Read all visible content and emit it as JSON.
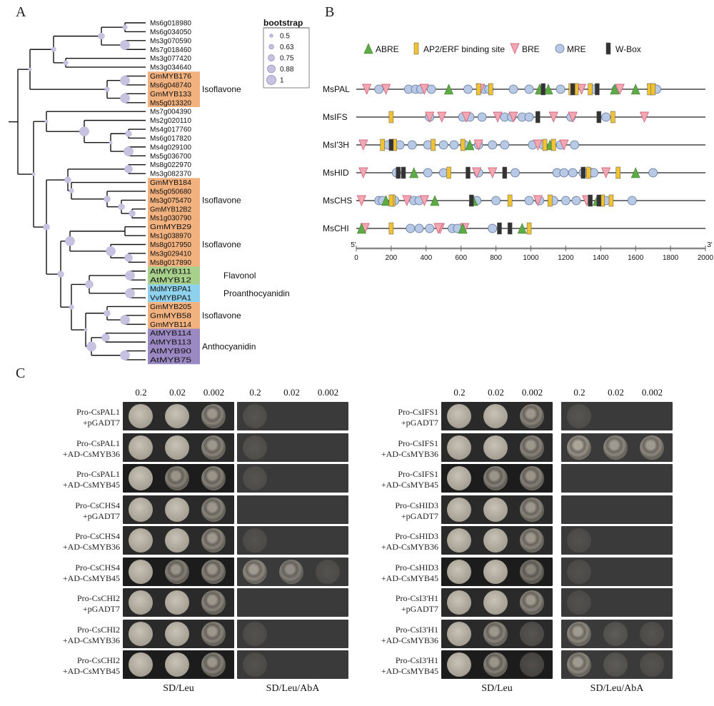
{
  "panels": {
    "a": "A",
    "b": "B",
    "c": "C"
  },
  "tree": {
    "bootstrap_legend": {
      "title": "bootstrap",
      "values": [
        "0.5",
        "0.63",
        "0.75",
        "0.88",
        "1"
      ]
    },
    "leaves": [
      "Ms6g018980",
      "Ms6g034050",
      "Ms3g070590",
      "Ms7g018460",
      "Ms3g077420",
      "Ms3g034640",
      "GmMYB176",
      "Ms6g048740",
      "GmMYB133",
      "Ms5g013320",
      "Ms7g004390",
      "Ms2g020110",
      "Ms4g017760",
      "Ms6g017820",
      "Ms4g029100",
      "Ms5g036700",
      "Ms8g022970",
      "Ms3g082370",
      "GmMYB184",
      "Ms5g050680",
      "Ms3g075470",
      "GmMYB12B2",
      "Ms1g030790",
      "GmMYB29",
      "Ms1g038970",
      "Ms8g017950",
      "Ms3g029410",
      "Ms8g017890",
      "AtMYB111",
      "AtMYB12",
      "MdMYBPA1",
      "VvMYBPA1",
      "GmMYB205",
      "GmMYB58",
      "GmMYB114",
      "AtMYB114",
      "AtMYB113",
      "AtMYB90",
      "AtMYB75"
    ],
    "groups": [
      {
        "label": "Isoflavone",
        "color": "#f2b27f"
      },
      {
        "label": "Isoflavone",
        "color": "#f2b27f"
      },
      {
        "label": "Isoflavone",
        "color": "#f2b27f"
      },
      {
        "label": "Flavonol",
        "color": "#a8d08d"
      },
      {
        "label": "Proanthocyanidin",
        "color": "#8ed1ec"
      },
      {
        "label": "Isoflavone",
        "color": "#f2b27f"
      },
      {
        "label": "Anthocyanidin",
        "color": "#9b89c4"
      }
    ]
  },
  "promoter": {
    "legend": [
      {
        "name": "ABRE",
        "shape": "triangle-up",
        "color": "#5cab45"
      },
      {
        "name": "AP2/ERF binding site",
        "shape": "bar",
        "color": "#f1c232"
      },
      {
        "name": "BRE",
        "shape": "triangle-down",
        "color": "#f2a7b3"
      },
      {
        "name": "MRE",
        "shape": "circle",
        "color": "#b8c9e6"
      },
      {
        "name": "W-Box",
        "shape": "bar",
        "color": "#333333"
      }
    ],
    "genes": [
      "MsPAL",
      "MsIFS",
      "MsI'3H",
      "MsHID",
      "MsCHS",
      "MsCHI"
    ],
    "axis": {
      "start_label": "5'",
      "end_label": "3'",
      "ticks": [
        "0",
        "200",
        "400",
        "600",
        "800",
        "1000",
        "1200",
        "1400",
        "1600",
        "1800",
        "2000"
      ],
      "max": 2000
    }
  },
  "y1h": {
    "dilutions": [
      "0.2",
      "0.02",
      "0.002"
    ],
    "media": [
      "SD/Leu",
      "SD/Leu/AbA"
    ],
    "left_rows": [
      {
        "line1": "Pro-CsPAL1",
        "line2": "+pGADT7"
      },
      {
        "line1": "Pro-CsPAL1",
        "line2": "+AD-CsMYB36"
      },
      {
        "line1": "Pro-CsPAL1",
        "line2": "+AD-CsMYB45"
      },
      {
        "line1": "Pro-CsCHS4",
        "line2": "+pGADT7"
      },
      {
        "line1": "Pro-CsCHS4",
        "line2": "+AD-CsMYB36"
      },
      {
        "line1": "Pro-CsCHS4",
        "line2": "+AD-CsMYB45"
      },
      {
        "line1": "Pro-CsCHI2",
        "line2": "+pGADT7"
      },
      {
        "line1": "Pro-CsCHI2",
        "line2": "+AD-CsMYB36"
      },
      {
        "line1": "Pro-CsCHI2",
        "line2": "+AD-CsMYB45"
      }
    ],
    "right_rows": [
      {
        "line1": "Pro-CsIFS1",
        "line2": "+pGADT7"
      },
      {
        "line1": "Pro-CsIFS1",
        "line2": "+AD-CsMYB36"
      },
      {
        "line1": "Pro-CsIFS1",
        "line2": "+AD-CsMYB45"
      },
      {
        "line1": "Pro-CsHID3",
        "line2": "+pGADT7"
      },
      {
        "line1": "Pro-CsHID3",
        "line2": "+AD-CsMYB36"
      },
      {
        "line1": "Pro-CsHID3",
        "line2": "+AD-CsMYB45"
      },
      {
        "line1": "Pro-CsI3'H1",
        "line2": "+pGADT7"
      },
      {
        "line1": "Pro-CsI3'H1",
        "line2": "+AD-CsMYB36"
      },
      {
        "line1": "Pro-CsI3'H1",
        "line2": "+AD-CsMYB45"
      }
    ]
  }
}
